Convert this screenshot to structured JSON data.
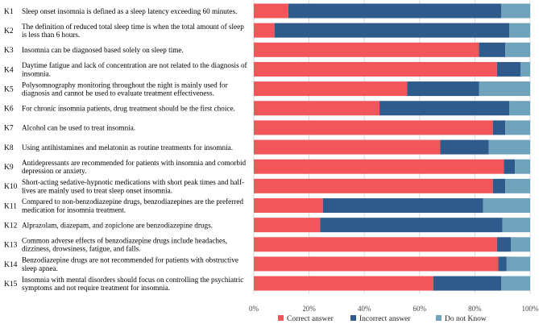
{
  "chart_data": {
    "type": "bar",
    "orientation": "horizontal",
    "stacked": "percent",
    "title": "",
    "xlabel": "",
    "ylabel": "",
    "xlim": [
      0,
      100
    ],
    "x_ticks": [
      "0%",
      "20%",
      "40%",
      "60%",
      "80%",
      "100%"
    ],
    "grid": true,
    "legend_position": "bottom",
    "categories": [
      {
        "id": "K1",
        "lines": [
          "Sleep onset insomnia is defined as a sleep latency exceeding 60 minutes."
        ]
      },
      {
        "id": "K2",
        "lines": [
          "The definition of reduced total sleep time is when the total amount of sleep",
          "is less than 6 hours."
        ]
      },
      {
        "id": "K3",
        "lines": [
          "Insomnia can be diagnosed based solely on sleep time."
        ]
      },
      {
        "id": "K4",
        "lines": [
          "Daytime fatigue and lack of concentration are not related to the diagnosis of",
          "insomnia."
        ]
      },
      {
        "id": "K5",
        "lines": [
          "Polysomnography monitoring throughout the night is mainly used for",
          "diagnosis and cannot be used to evaluate treatment effectiveness."
        ]
      },
      {
        "id": "K6",
        "lines": [
          "For chronic insomnia patients, drug treatment should be the first choice."
        ]
      },
      {
        "id": "K7",
        "lines": [
          "Alcohol can be used to treat insomnia."
        ]
      },
      {
        "id": "K8",
        "lines": [
          "Using antihistamines and melatonin as routine treatments for insomnia."
        ]
      },
      {
        "id": "K9",
        "lines": [
          "Antidepressants are recommended for patients with insomnia and comorbid",
          "depression or anxiety."
        ]
      },
      {
        "id": "K10",
        "lines": [
          "Short-acting sedative-hypnotic medications with short peak times and half-",
          "lives are mainly used to treat sleep onset insomnia."
        ]
      },
      {
        "id": "K11",
        "lines": [
          "Compared to non-benzodiazepine drugs, benzodiazepines are the preferred",
          "medication for insomnia treatment."
        ]
      },
      {
        "id": "K12",
        "lines": [
          "Alprazolam, diazepam, and zopiclone are benzodiazepine drugs."
        ]
      },
      {
        "id": "K13",
        "lines": [
          "Common adverse effects of benzodiazepine drugs include headaches,",
          "dizziness, drowsiness, fatigue, and falls."
        ]
      },
      {
        "id": "K14",
        "lines": [
          "Benzodiazepine drugs are not recommended for patients with obstructive",
          "sleep apnea."
        ]
      },
      {
        "id": "K15",
        "lines": [
          "Insomnia with mental disorders should focus on controlling the psychiatric",
          "symptoms and not require treatment for insomnia."
        ]
      }
    ],
    "series": [
      {
        "name": "Correct answer",
        "color": "#f2555a",
        "values": [
          12.5,
          7.5,
          81.5,
          88,
          55.5,
          45.5,
          86.5,
          67.5,
          90.5,
          86.5,
          25,
          24,
          88,
          88.5,
          65
        ]
      },
      {
        "name": "Incorrect answer",
        "color": "#2e5b8c",
        "values": [
          77,
          85,
          9.5,
          8.5,
          26,
          47,
          4.5,
          17.5,
          4,
          4.5,
          58,
          66,
          5,
          3,
          24.5
        ]
      },
      {
        "name": "Do not Know",
        "color": "#6fa3bc",
        "values": [
          10.5,
          7.5,
          9,
          3.5,
          18.5,
          7.5,
          9,
          15,
          5.5,
          9,
          17,
          10,
          7,
          8.5,
          10.5
        ]
      }
    ]
  }
}
